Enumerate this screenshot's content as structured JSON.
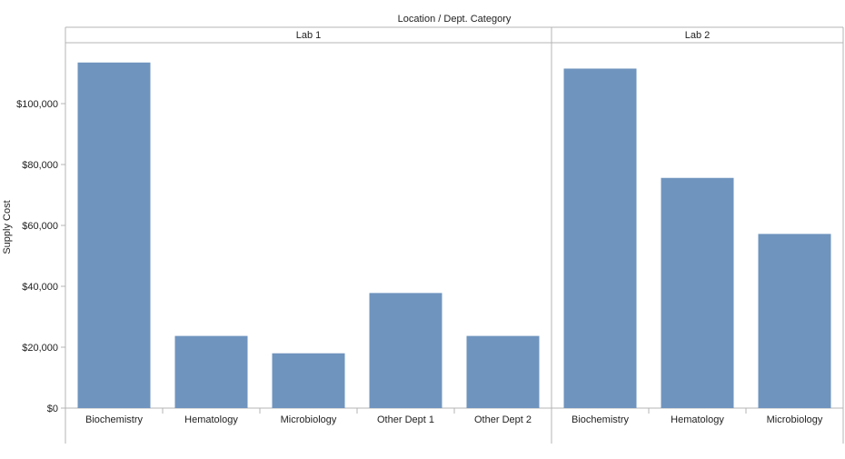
{
  "chart_data": {
    "type": "bar",
    "header_title": "Location  /  Dept. Category",
    "ylabel": "Supply Cost",
    "ylim": [
      0,
      120000
    ],
    "yticks": [
      0,
      20000,
      40000,
      60000,
      80000,
      100000
    ],
    "ytick_labels": [
      "$0",
      "$20,000",
      "$40,000",
      "$60,000",
      "$80,000",
      "$100,000"
    ],
    "bar_color": "#6f94be",
    "grid": false,
    "panels": [
      {
        "name": "Lab 1",
        "categories": [
          "Biochemistry",
          "Hematology",
          "Microbiology",
          "Other Dept 1",
          "Other Dept 2"
        ],
        "values": [
          113500,
          23700,
          18000,
          37800,
          23700
        ]
      },
      {
        "name": "Lab 2",
        "categories": [
          "Biochemistry",
          "Hematology",
          "Microbiology"
        ],
        "values": [
          111500,
          75600,
          57200
        ]
      }
    ]
  }
}
